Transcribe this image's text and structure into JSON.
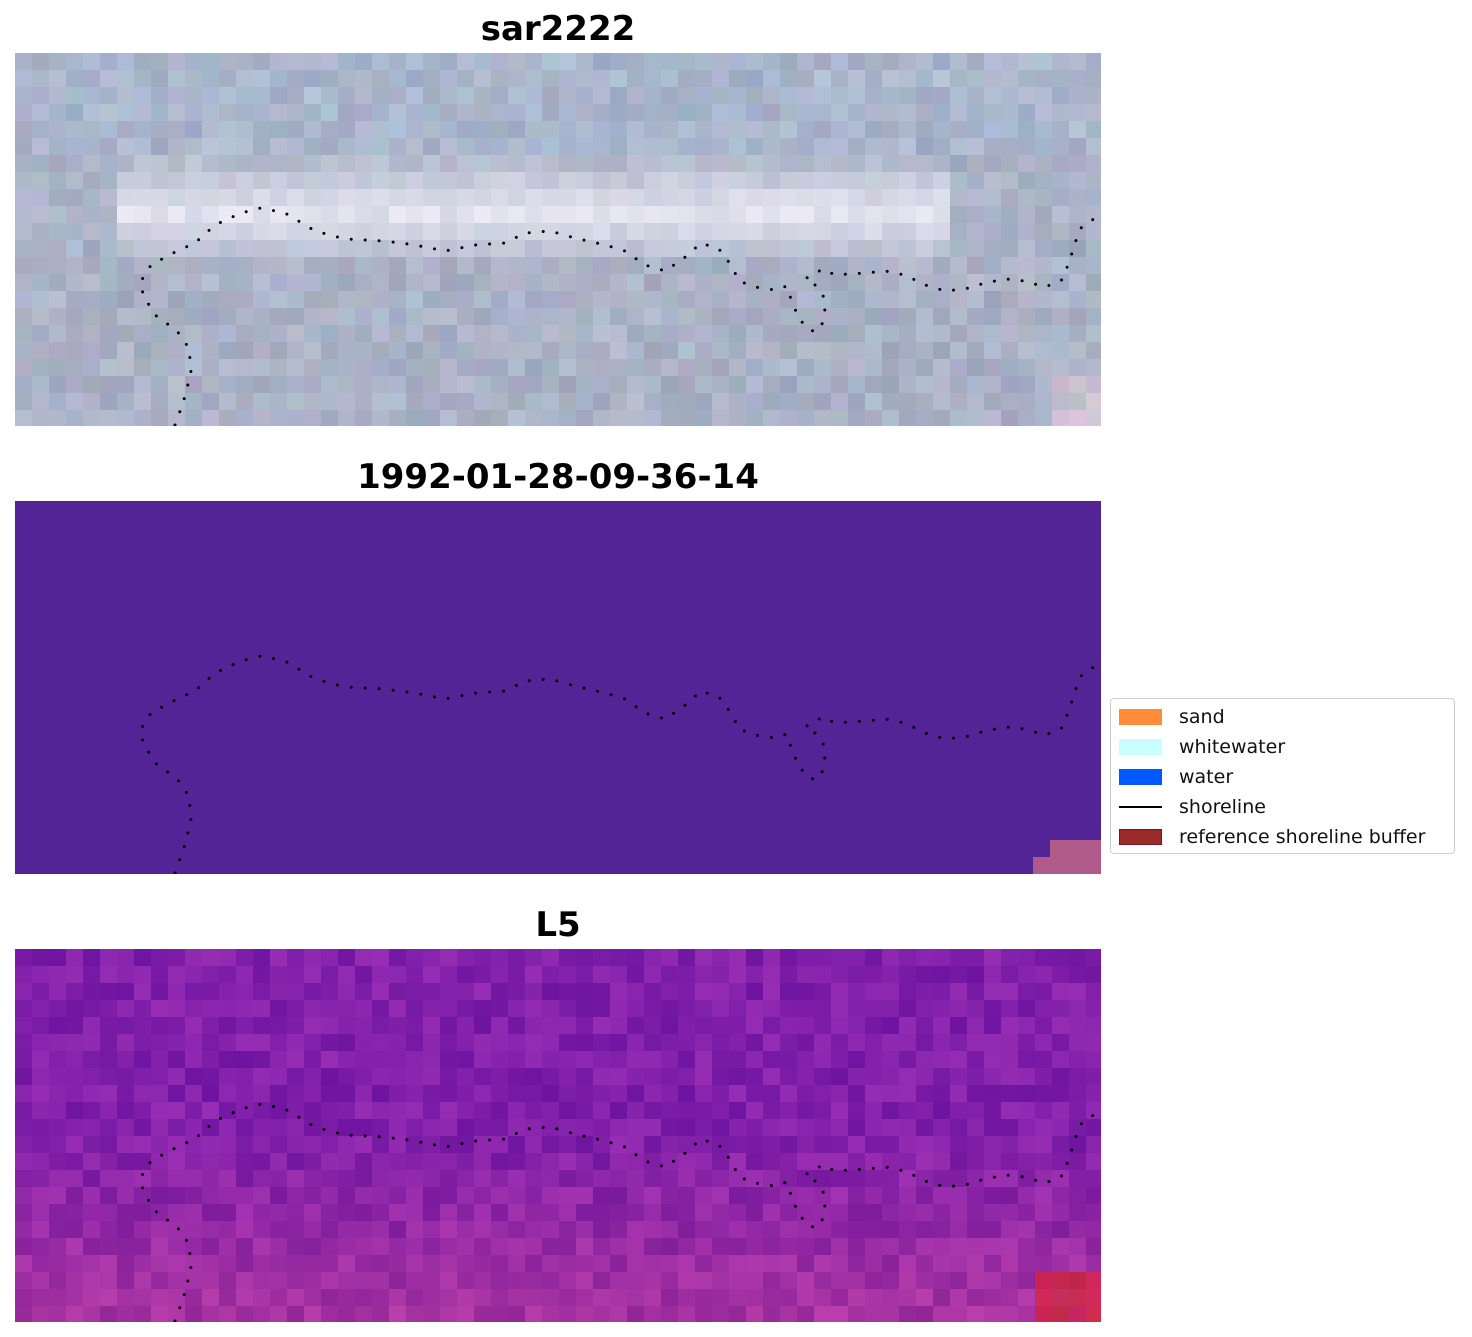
{
  "panels": [
    {
      "title": "sar2222",
      "kind": "sar"
    },
    {
      "title": "1992-01-28-09-36-14",
      "kind": "class"
    },
    {
      "title": "L5",
      "kind": "mndwi"
    }
  ],
  "legend": {
    "items": [
      {
        "label": "sand",
        "type": "patch",
        "color": "#ff8c3b"
      },
      {
        "label": "whitewater",
        "type": "patch",
        "color": "#c8ffff"
      },
      {
        "label": "water",
        "type": "patch",
        "color": "#0059ff"
      },
      {
        "label": "shoreline",
        "type": "line",
        "color": "#000000"
      },
      {
        "label": "reference shoreline buffer",
        "type": "patch",
        "color": "#9a2b2b"
      }
    ]
  },
  "colors": {
    "class_background": "#522496",
    "buffer_pink": "#b05a8a",
    "shoreline_dots": "#000000"
  }
}
